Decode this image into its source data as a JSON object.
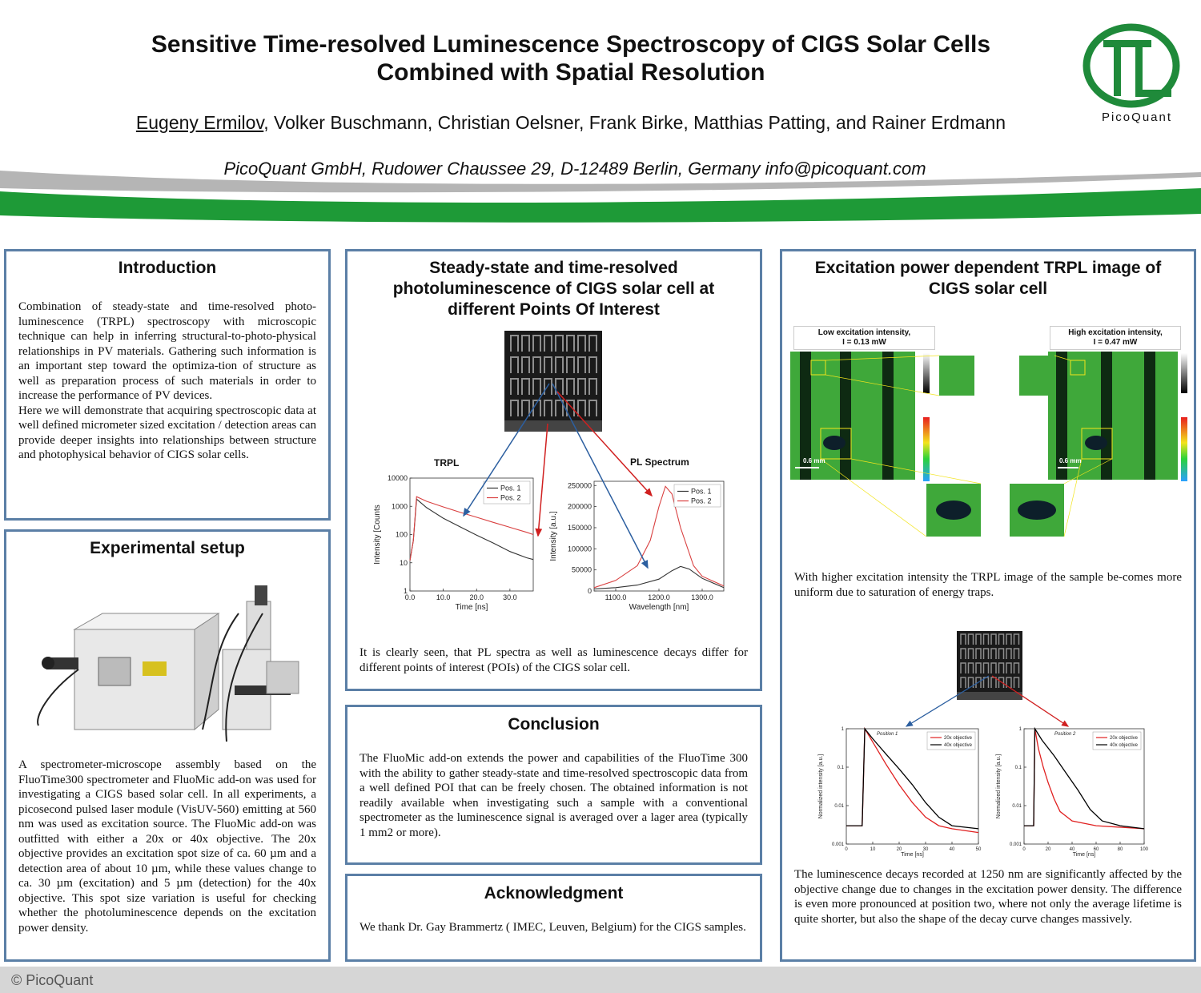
{
  "header": {
    "title_line1": "Sensitive Time-resolved Luminescence Spectroscopy of CIGS Solar Cells",
    "title_line2": "Combined with Spatial Resolution",
    "presenter": "Eugeny Ermilov",
    "coauthors": ", Volker Buschmann, Christian Oelsner, Frank Birke, Matthias Patting, and Rainer Erdmann",
    "affiliation": "PicoQuant GmbH, Rudower Chaussee 29, D-12489 Berlin, Germany info@picoquant.com",
    "logo_text": "PicoQuant"
  },
  "intro": {
    "heading": "Introduction",
    "text": "Combination of steady-state and time-resolved photo-luminescence (TRPL) spectroscopy with microscopic technique can help in inferring structural-to-photo-physical relationships in PV materials. Gathering such information is an important step toward the optimiza-tion of structure as well as preparation process of such materials in order to increase the performance of PV devices.",
    "text2": "Here we will demonstrate that acquiring spectroscopic data at well defined micrometer sized excitation / detection areas can provide deeper insights into relationships between structure and photophysical behavior of CIGS solar cells."
  },
  "setup": {
    "heading": "Experimental setup",
    "text": "A spectrometer-microscope assembly based on the FluoTime300 spectrometer and FluoMic add-on was used for investigating a CIGS based solar cell. In all experiments, a picosecond pulsed laser module (VisUV-560) emitting at 560 nm was used as excitation source. The FluoMic add-on was outfitted with either a 20x or 40x objective. The 20x objective provides an excitation spot size of ca. 60 µm and a detection area of about 10 µm, while these values change to ca. 30 µm (excitation) and 5 µm (detection) for the 40x objective. This spot size variation is useful for checking whether the photoluminescence depends on the excitation power density."
  },
  "steady": {
    "heading": "Steady-state and time-resolved photoluminescence of CIGS solar cell at different Points Of Interest",
    "text": "It is clearly seen, that PL spectra as well as luminescence decays differ for different points of interest (POIs) of the CIGS solar cell."
  },
  "conclusion": {
    "heading": "Conclusion",
    "text": "The FluoMic add-on extends the power and capabilities of the FluoTime 300 with the ability to gather steady-state and time-resolved spectroscopic data from a well defined POI that can be freely chosen. The obtained information is not readily available when investigating such a sample with a conventional spectrometer as the luminescence signal is averaged over a lager area (typically 1 mm2 or more)."
  },
  "ack": {
    "heading": "Acknowledgment",
    "text": "We thank Dr. Gay Brammertz ( IMEC, Leuven, Belgium) for the CIGS samples."
  },
  "excitation": {
    "heading": "Excitation power dependent TRPL image of CIGS solar cell",
    "low_label": "Low excitation intensity,",
    "low_value": "I = 0.13 mW",
    "high_label": "High excitation intensity,",
    "high_value": "I = 0.47 mW",
    "scale_bar": "0.6 mm",
    "text1": "With higher excitation intensity the TRPL image of the sample be-comes more uniform due to saturation of energy traps.",
    "text2": "The luminescence decays recorded at 1250 nm are significantly affected by the objective change due to changes in the excitation power density. The difference is even more pronounced at position two, where not only the average lifetime is quite shorter, but also the shape of the decay curve changes massively."
  },
  "footer": {
    "text": "© PicoQuant"
  },
  "chart_data": [
    {
      "type": "line",
      "title": "TRPL",
      "xlabel": "Time [ns]",
      "ylabel": "Intensity [Counts",
      "yscale": "log",
      "xlim": [
        0,
        37
      ],
      "ylim": [
        1,
        10000
      ],
      "x_ticks": [
        "0.0",
        "10.0",
        "20.0",
        "30.0"
      ],
      "y_ticks": [
        "1",
        "10",
        "100",
        "1000",
        "10000"
      ],
      "legend": "top-right",
      "series": [
        {
          "name": "Pos. 1",
          "color": "#333333",
          "x": [
            0,
            1,
            2,
            5,
            10,
            15,
            20,
            25,
            30,
            35,
            37
          ],
          "y": [
            12,
            60,
            1800,
            900,
            380,
            190,
            95,
            50,
            25,
            15,
            13
          ]
        },
        {
          "name": "Pos. 2",
          "color": "#d94040",
          "x": [
            0,
            1,
            2,
            5,
            10,
            15,
            20,
            25,
            30,
            35,
            37
          ],
          "y": [
            12,
            60,
            2200,
            1500,
            950,
            620,
            410,
            270,
            180,
            120,
            100
          ]
        }
      ]
    },
    {
      "type": "line",
      "title": "PL Spectrum",
      "xlabel": "Wavelength [nm]",
      "ylabel": "Intensity [a.u.]",
      "xlim": [
        1050,
        1350
      ],
      "ylim": [
        0,
        260000
      ],
      "x_ticks": [
        "1100.0",
        "1200.0",
        "1300.0"
      ],
      "y_ticks": [
        "0",
        "50000",
        "100000",
        "150000",
        "200000",
        "250000"
      ],
      "legend": "top-right",
      "series": [
        {
          "name": "Pos. 1",
          "color": "#333333",
          "x": [
            1050,
            1100,
            1150,
            1200,
            1230,
            1250,
            1270,
            1300,
            1350
          ],
          "y": [
            5000,
            8000,
            14000,
            28000,
            48000,
            58000,
            52000,
            30000,
            8000
          ]
        },
        {
          "name": "Pos. 2",
          "color": "#d94040",
          "x": [
            1050,
            1100,
            1150,
            1180,
            1200,
            1215,
            1230,
            1250,
            1280,
            1300,
            1350
          ],
          "y": [
            8000,
            25000,
            60000,
            120000,
            200000,
            248000,
            230000,
            150000,
            60000,
            35000,
            12000
          ]
        }
      ]
    },
    {
      "type": "line",
      "title": "Position 1",
      "xlabel": "Time [ns]",
      "ylabel": "Normalized intensity [a.u.]",
      "yscale": "log",
      "xlim": [
        0,
        50
      ],
      "ylim": [
        0.001,
        1
      ],
      "x_ticks": [
        "0",
        "10",
        "20",
        "30",
        "40",
        "50"
      ],
      "y_ticks": [
        "0.001",
        "0.01",
        "0.1",
        "1"
      ],
      "legend": "top-right",
      "series": [
        {
          "name": "20x objective",
          "color": "#e02020",
          "x": [
            0,
            6,
            7,
            10,
            15,
            20,
            25,
            30,
            35,
            40,
            50
          ],
          "y": [
            0.003,
            0.003,
            1,
            0.45,
            0.12,
            0.035,
            0.012,
            0.005,
            0.003,
            0.0025,
            0.002
          ]
        },
        {
          "name": "40x objective",
          "color": "#000000",
          "x": [
            0,
            6,
            7,
            10,
            15,
            20,
            25,
            30,
            35,
            40,
            50
          ],
          "y": [
            0.003,
            0.003,
            1,
            0.55,
            0.22,
            0.09,
            0.035,
            0.012,
            0.005,
            0.003,
            0.0025
          ]
        }
      ]
    },
    {
      "type": "line",
      "title": "Position 2",
      "xlabel": "Time [ns]",
      "ylabel": "Normalized intensity [a.u.]",
      "yscale": "log",
      "xlim": [
        0,
        100
      ],
      "ylim": [
        0.001,
        1
      ],
      "x_ticks": [
        "0",
        "20",
        "40",
        "60",
        "80",
        "100"
      ],
      "y_ticks": [
        "0.001",
        "0.01",
        "0.1",
        "1"
      ],
      "legend": "top-right",
      "series": [
        {
          "name": "20x objective",
          "color": "#e02020",
          "x": [
            0,
            8,
            9,
            12,
            16,
            20,
            25,
            30,
            40,
            60,
            100
          ],
          "y": [
            0.003,
            0.003,
            1,
            0.3,
            0.1,
            0.04,
            0.015,
            0.007,
            0.004,
            0.003,
            0.0025
          ]
        },
        {
          "name": "40x objective",
          "color": "#000000",
          "x": [
            0,
            8,
            9,
            15,
            25,
            35,
            45,
            55,
            65,
            80,
            100
          ],
          "y": [
            0.003,
            0.003,
            1,
            0.5,
            0.2,
            0.07,
            0.025,
            0.008,
            0.004,
            0.003,
            0.0025
          ]
        }
      ]
    }
  ]
}
